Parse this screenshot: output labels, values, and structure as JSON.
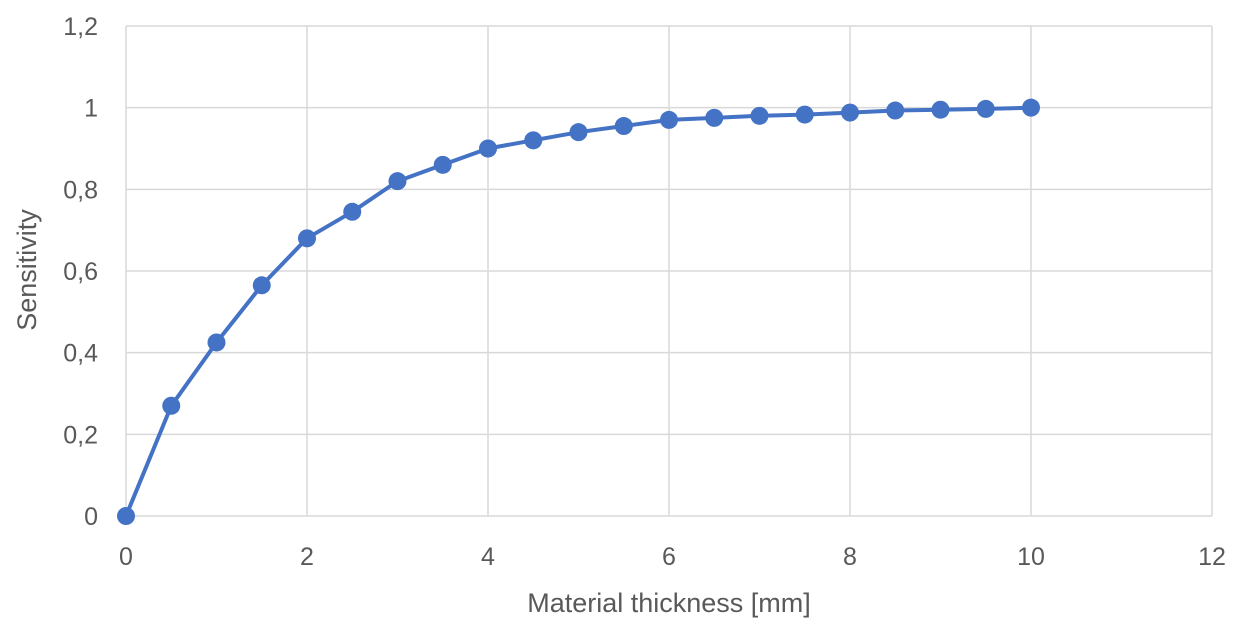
{
  "chart_data": {
    "type": "line",
    "title": "",
    "xlabel": "Material thickness [mm]",
    "ylabel": "Sensitivity",
    "xlim": [
      0,
      12
    ],
    "ylim": [
      0,
      1.2
    ],
    "x_ticks": [
      "0",
      "2",
      "4",
      "6",
      "8",
      "10",
      "12"
    ],
    "y_ticks": [
      "0",
      "0,2",
      "0,4",
      "0,6",
      "0,8",
      "1",
      "1,2"
    ],
    "grid": true,
    "legend": "none",
    "series": [
      {
        "color": "#4472c4",
        "marker": "circle",
        "x": [
          0,
          0.5,
          1,
          1.5,
          2,
          2.5,
          3,
          3.5,
          4,
          4.5,
          5,
          5.5,
          6,
          6.5,
          7,
          7.5,
          8,
          8.5,
          9,
          9.5,
          10
        ],
        "y": [
          0,
          0.27,
          0.425,
          0.565,
          0.68,
          0.745,
          0.82,
          0.86,
          0.9,
          0.92,
          0.94,
          0.955,
          0.97,
          0.975,
          0.98,
          0.983,
          0.988,
          0.993,
          0.995,
          0.997,
          1.0
        ]
      }
    ]
  }
}
